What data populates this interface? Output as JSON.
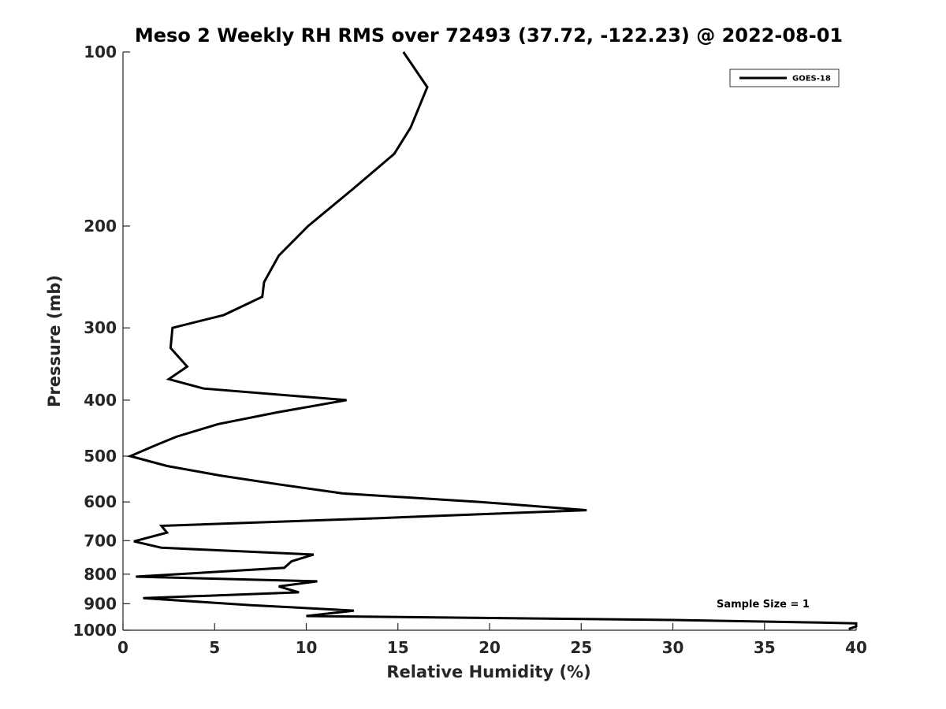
{
  "chart_data": {
    "type": "line",
    "title": "Meso 2 Weekly RH RMS over 72493 (37.72, -122.23) @ 2022-08-01",
    "xlabel": "Relative Humidity (%)",
    "ylabel": "Pressure (mb)",
    "xlim": [
      0,
      40
    ],
    "ylim": [
      100,
      1000
    ],
    "y_scale": "log",
    "y_reversed": true,
    "x_ticks": [
      "0",
      "5",
      "10",
      "15",
      "20",
      "25",
      "30",
      "35",
      "40"
    ],
    "y_ticks": [
      "100",
      "200",
      "300",
      "400",
      "500",
      "600",
      "700",
      "800",
      "900",
      "1000"
    ],
    "grid": false,
    "legend_position": "top-right",
    "annotation": "Sample Size = 1",
    "series": [
      {
        "name": "GOES-18",
        "color": "#000000",
        "points": [
          [
            15.3,
            100
          ],
          [
            16.6,
            115
          ],
          [
            15.7,
            135
          ],
          [
            14.8,
            150
          ],
          [
            12.6,
            172
          ],
          [
            10.1,
            200
          ],
          [
            8.5,
            225
          ],
          [
            7.7,
            250
          ],
          [
            7.6,
            265
          ],
          [
            5.5,
            285
          ],
          [
            2.7,
            300
          ],
          [
            2.6,
            325
          ],
          [
            3.5,
            350
          ],
          [
            2.5,
            368
          ],
          [
            4.4,
            382
          ],
          [
            12.2,
            400
          ],
          [
            8.4,
            420
          ],
          [
            5.2,
            440
          ],
          [
            2.9,
            463
          ],
          [
            1.7,
            480
          ],
          [
            0.4,
            500
          ],
          [
            2.4,
            520
          ],
          [
            5.3,
            540
          ],
          [
            8.6,
            560
          ],
          [
            12.0,
            580
          ],
          [
            19.5,
            600
          ],
          [
            25.3,
            620
          ],
          [
            14.0,
            640
          ],
          [
            2.1,
            660
          ],
          [
            2.4,
            678
          ],
          [
            0.6,
            702
          ],
          [
            2.1,
            720
          ],
          [
            10.4,
            740
          ],
          [
            9.2,
            760
          ],
          [
            8.8,
            780
          ],
          [
            0.7,
            808
          ],
          [
            10.6,
            823
          ],
          [
            8.5,
            840
          ],
          [
            9.6,
            860
          ],
          [
            1.1,
            880
          ],
          [
            7.0,
            905
          ],
          [
            12.6,
            925
          ],
          [
            10.0,
            945
          ],
          [
            30.0,
            960
          ],
          [
            38.0,
            970
          ],
          [
            40.0,
            973
          ],
          [
            40.0,
            985
          ],
          [
            39.6,
            995
          ]
        ]
      }
    ]
  }
}
